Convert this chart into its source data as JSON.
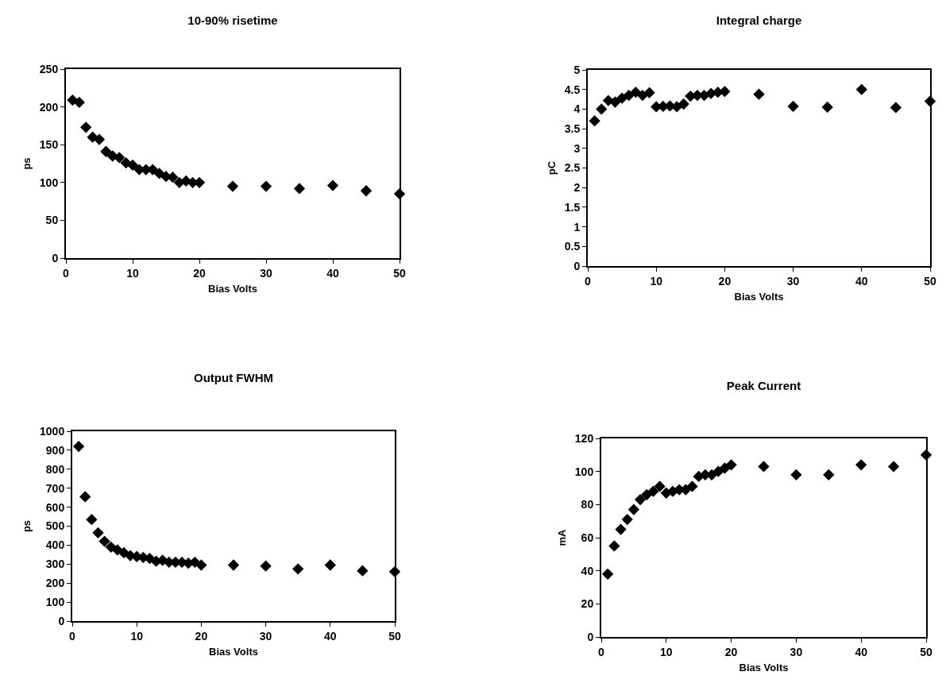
{
  "chart_data": [
    {
      "type": "scatter",
      "title": "10-90% risetime",
      "xlabel": "Bias Volts",
      "ylabel": "ps",
      "marker": "diamond",
      "x": [
        1,
        2,
        3,
        4,
        5,
        6,
        7,
        8,
        9,
        10,
        11,
        12,
        13,
        14,
        15,
        16,
        17,
        18,
        19,
        20,
        25,
        30,
        35,
        40,
        45,
        50
      ],
      "xlim": [
        0,
        50
      ],
      "xticks": [
        0,
        10,
        20,
        30,
        40,
        50
      ],
      "ylim": [
        0,
        250
      ],
      "yticks": [
        0,
        50,
        100,
        150,
        200,
        250
      ],
      "series": [
        {
          "color": "#000000",
          "values": [
            209,
            206,
            173,
            160,
            157,
            141,
            135,
            133,
            126,
            123,
            117,
            117,
            117,
            112,
            108,
            107,
            100,
            102,
            100,
            100,
            95,
            95,
            92,
            96,
            89,
            85
          ]
        }
      ]
    },
    {
      "type": "scatter",
      "title": "Integral charge",
      "xlabel": "Bias Volts",
      "ylabel": "pC",
      "marker": "diamond",
      "x": [
        1,
        2,
        3,
        4,
        5,
        6,
        7,
        8,
        9,
        10,
        11,
        12,
        13,
        14,
        15,
        16,
        17,
        18,
        19,
        20,
        25,
        30,
        35,
        40,
        45,
        50
      ],
      "xlim": [
        0,
        50
      ],
      "xticks": [
        0,
        10,
        20,
        30,
        40,
        50
      ],
      "ylim": [
        0,
        5
      ],
      "yticks": [
        0,
        0.5,
        1,
        1.5,
        2,
        2.5,
        3,
        3.5,
        4,
        4.5,
        5
      ],
      "series": [
        {
          "color": "#000000",
          "values": [
            3.7,
            4.0,
            4.22,
            4.18,
            4.28,
            4.35,
            4.43,
            4.35,
            4.42,
            4.06,
            4.07,
            4.08,
            4.06,
            4.13,
            4.33,
            4.35,
            4.35,
            4.4,
            4.43,
            4.45,
            4.38,
            4.07,
            4.05,
            4.5,
            4.04,
            4.2
          ]
        }
      ]
    },
    {
      "type": "scatter",
      "title": "Output FWHM",
      "xlabel": "Bias Volts",
      "ylabel": "ps",
      "marker": "diamond",
      "x": [
        1,
        2,
        3,
        4,
        5,
        6,
        7,
        8,
        9,
        10,
        11,
        12,
        13,
        14,
        15,
        16,
        17,
        18,
        19,
        20,
        25,
        30,
        35,
        40,
        45,
        50
      ],
      "xlim": [
        0,
        50
      ],
      "xticks": [
        0,
        10,
        20,
        30,
        40,
        50
      ],
      "ylim": [
        0,
        1000
      ],
      "yticks": [
        0,
        100,
        200,
        300,
        400,
        500,
        600,
        700,
        800,
        900,
        1000
      ],
      "series": [
        {
          "color": "#000000",
          "values": [
            920,
            655,
            535,
            465,
            420,
            390,
            375,
            360,
            345,
            340,
            335,
            330,
            315,
            320,
            310,
            310,
            310,
            305,
            310,
            295,
            295,
            290,
            275,
            295,
            265,
            260
          ]
        }
      ]
    },
    {
      "type": "scatter",
      "title": "Peak Current",
      "xlabel": "Bias Volts",
      "ylabel": "mA",
      "marker": "diamond",
      "x": [
        1,
        2,
        3,
        4,
        5,
        6,
        7,
        8,
        9,
        10,
        11,
        12,
        13,
        14,
        15,
        16,
        17,
        18,
        19,
        20,
        25,
        30,
        35,
        40,
        45,
        50
      ],
      "xlim": [
        0,
        50
      ],
      "xticks": [
        0,
        10,
        20,
        30,
        40,
        50
      ],
      "ylim": [
        0,
        120
      ],
      "yticks": [
        0,
        20,
        40,
        60,
        80,
        100,
        120
      ],
      "series": [
        {
          "color": "#000000",
          "values": [
            38,
            55,
            65,
            71,
            77,
            83,
            86,
            88,
            91,
            87,
            88,
            89,
            89,
            91,
            97,
            98,
            98,
            100,
            102,
            104,
            103,
            98,
            98,
            104,
            103,
            110
          ]
        }
      ]
    }
  ]
}
